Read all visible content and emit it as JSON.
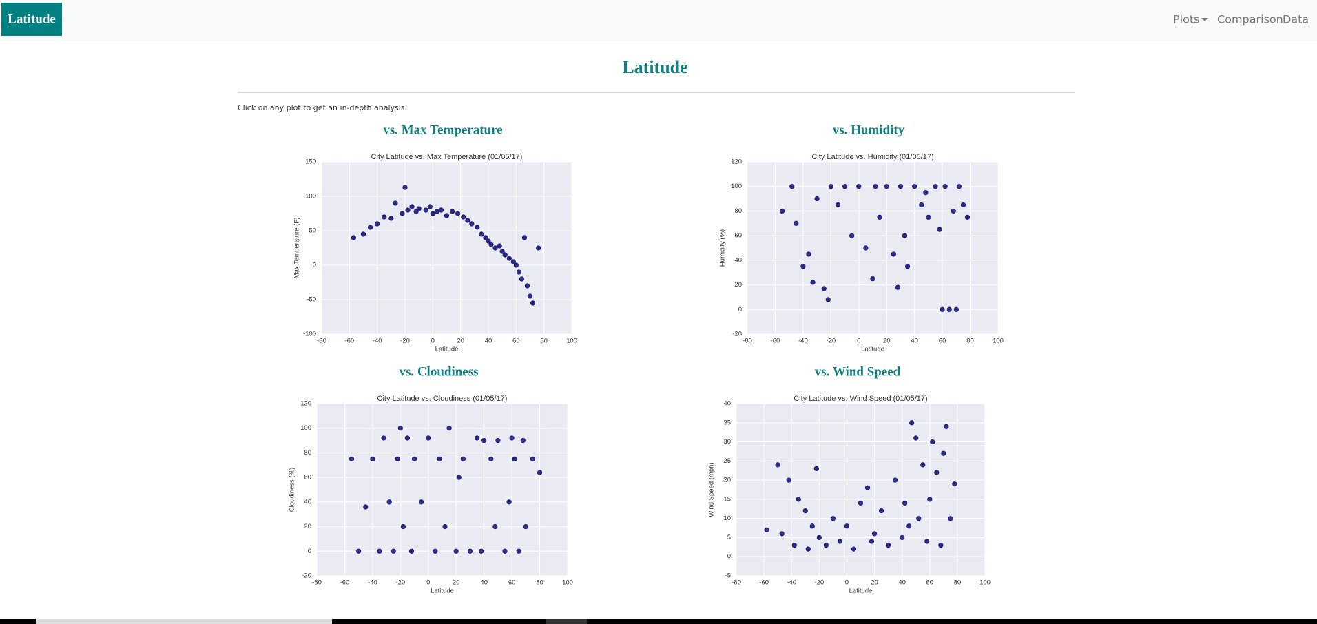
{
  "navbar": {
    "brand": "Latitude",
    "links": [
      "Plots",
      "Comparison",
      "Data"
    ]
  },
  "page": {
    "title": "Latitude",
    "instruction": "Click on any plot to get an in-depth analysis."
  },
  "sections": [
    "vs. Max Temperature",
    "vs. Humidity",
    "vs. Cloudiness",
    "vs. Wind Speed"
  ],
  "chart_data": [
    {
      "type": "scatter",
      "title": "City Latitude vs. Max Temperature (01/05/17)",
      "xlabel": "Latitude",
      "ylabel": "Max Temperature (F)",
      "color": "#0b0b70",
      "grid": true,
      "xlim": [
        -80,
        100
      ],
      "xticks": [
        -80,
        -60,
        -40,
        -20,
        0,
        20,
        40,
        60,
        80,
        100
      ],
      "ylim": [
        -100,
        150
      ],
      "yticks": [
        -100,
        -50,
        0,
        50,
        100,
        150
      ],
      "x": [
        -57,
        -50,
        -45,
        -40,
        -35,
        -30,
        -27,
        -22,
        -20,
        -18,
        -15,
        -12,
        -10,
        -5,
        -2,
        0,
        3,
        6,
        10,
        14,
        18,
        22,
        25,
        28,
        32,
        35,
        38,
        40,
        42,
        45,
        48,
        50,
        52,
        55,
        58,
        60,
        62,
        64,
        66,
        68,
        70,
        72,
        76
      ],
      "values": [
        40,
        45,
        55,
        60,
        70,
        68,
        90,
        75,
        113,
        80,
        85,
        78,
        82,
        80,
        85,
        75,
        78,
        80,
        72,
        78,
        75,
        70,
        65,
        60,
        55,
        45,
        40,
        35,
        30,
        25,
        28,
        20,
        15,
        10,
        5,
        0,
        -10,
        -20,
        40,
        -30,
        -45,
        -55,
        25
      ]
    },
    {
      "type": "scatter",
      "title": "City Latitude vs. Humidity (01/05/17)",
      "xlabel": "Latitude",
      "ylabel": "Humidity (%)",
      "color": "#0b0b70",
      "grid": true,
      "xlim": [
        -80,
        100
      ],
      "xticks": [
        -80,
        -60,
        -40,
        -20,
        0,
        20,
        40,
        60,
        80,
        100
      ],
      "ylim": [
        -20,
        120
      ],
      "yticks": [
        -20,
        0,
        20,
        40,
        60,
        80,
        100,
        120
      ],
      "x": [
        -55,
        -48,
        -45,
        -40,
        -36,
        -33,
        -30,
        -25,
        -22,
        -20,
        -15,
        -10,
        -5,
        0,
        5,
        10,
        12,
        15,
        20,
        25,
        28,
        30,
        33,
        35,
        40,
        45,
        48,
        50,
        55,
        58,
        60,
        62,
        65,
        68,
        70,
        72,
        75,
        78
      ],
      "values": [
        80,
        100,
        70,
        35,
        45,
        22,
        90,
        17,
        8,
        100,
        85,
        100,
        60,
        100,
        50,
        25,
        100,
        75,
        100,
        45,
        18,
        100,
        60,
        35,
        100,
        85,
        95,
        75,
        100,
        65,
        0,
        100,
        0,
        80,
        0,
        100,
        85,
        75
      ]
    },
    {
      "type": "scatter",
      "title": "City Latitude vs. Cloudiness (01/05/17)",
      "xlabel": "Latitude",
      "ylabel": "Cloudiness (%)",
      "color": "#0b0b70",
      "grid": true,
      "xlim": [
        -80,
        100
      ],
      "xticks": [
        -80,
        -60,
        -40,
        -20,
        0,
        20,
        40,
        60,
        80,
        100
      ],
      "ylim": [
        -20,
        120
      ],
      "yticks": [
        -20,
        0,
        20,
        40,
        60,
        80,
        100,
        120
      ],
      "x": [
        -55,
        -50,
        -45,
        -40,
        -35,
        -32,
        -28,
        -25,
        -22,
        -20,
        -18,
        -15,
        -12,
        -10,
        -5,
        0,
        5,
        8,
        12,
        15,
        20,
        22,
        25,
        30,
        35,
        38,
        40,
        45,
        48,
        50,
        55,
        58,
        60,
        62,
        65,
        68,
        70,
        75,
        80
      ],
      "values": [
        75,
        0,
        36,
        75,
        0,
        92,
        40,
        0,
        75,
        100,
        20,
        92,
        0,
        75,
        40,
        92,
        0,
        75,
        20,
        100,
        0,
        60,
        75,
        0,
        92,
        0,
        90,
        75,
        20,
        90,
        0,
        40,
        92,
        75,
        0,
        90,
        20,
        75,
        64
      ]
    },
    {
      "type": "scatter",
      "title": "City Latitude vs. Wind Speed (01/05/17)",
      "xlabel": "Latitude",
      "ylabel": "Wind Speed (mph)",
      "color": "#0b0b70",
      "grid": true,
      "xlim": [
        -80,
        100
      ],
      "xticks": [
        -80,
        -60,
        -40,
        -20,
        0,
        20,
        40,
        60,
        80,
        100
      ],
      "ylim": [
        -5,
        40
      ],
      "yticks": [
        -5,
        0,
        5,
        10,
        15,
        20,
        25,
        30,
        35,
        40
      ],
      "x": [
        -58,
        -50,
        -47,
        -42,
        -38,
        -35,
        -30,
        -28,
        -25,
        -22,
        -20,
        -15,
        -10,
        -5,
        0,
        5,
        10,
        15,
        18,
        20,
        25,
        30,
        35,
        40,
        42,
        45,
        47,
        50,
        52,
        55,
        58,
        60,
        62,
        65,
        68,
        70,
        72,
        75,
        78
      ],
      "values": [
        7,
        24,
        6,
        20,
        3,
        15,
        12,
        2,
        8,
        23,
        5,
        3,
        10,
        4,
        8,
        2,
        14,
        18,
        4,
        6,
        12,
        3,
        20,
        5,
        14,
        8,
        35,
        31,
        10,
        24,
        4,
        15,
        30,
        22,
        3,
        27,
        34,
        10,
        19
      ]
    }
  ]
}
